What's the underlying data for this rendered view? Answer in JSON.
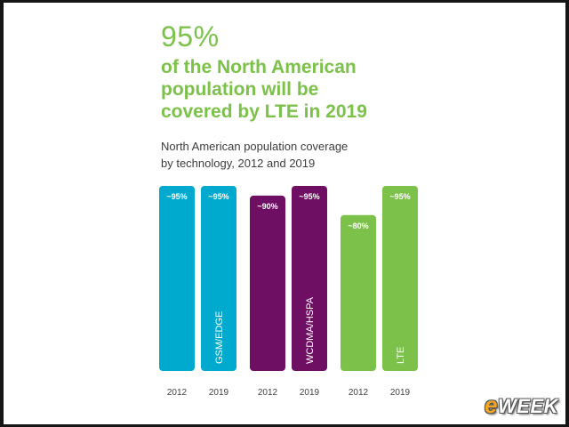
{
  "headline": {
    "big_number": "95%",
    "lines": [
      "of the North American",
      "population will be",
      "covered by LTE in 2019"
    ]
  },
  "subtitle": {
    "lines": [
      "North American population coverage",
      "by technology, 2012 and 2019"
    ]
  },
  "watermark": {
    "prefix": "e",
    "rest": "WEEK"
  },
  "chart_data": {
    "type": "bar",
    "title": "North American population coverage by technology, 2012 and 2019",
    "xlabel": "",
    "ylabel": "",
    "ylim": [
      0,
      100
    ],
    "grid": false,
    "legend": "none",
    "groups": [
      {
        "technology": "GSM/EDGE",
        "color": "#00a9ce",
        "bars": [
          {
            "year": "2012",
            "value": 95,
            "label": "~95%"
          },
          {
            "year": "2019",
            "value": 95,
            "label": "~95%"
          }
        ]
      },
      {
        "technology": "WCDMA/HSPA",
        "color": "#6e0f63",
        "bars": [
          {
            "year": "2012",
            "value": 90,
            "label": "~90%"
          },
          {
            "year": "2019",
            "value": 95,
            "label": "~95%"
          }
        ]
      },
      {
        "technology": "LTE",
        "color": "#7cc14a",
        "bars": [
          {
            "year": "2012",
            "value": 80,
            "label": "~80%"
          },
          {
            "year": "2019",
            "value": 95,
            "label": "~95%"
          }
        ]
      }
    ]
  }
}
